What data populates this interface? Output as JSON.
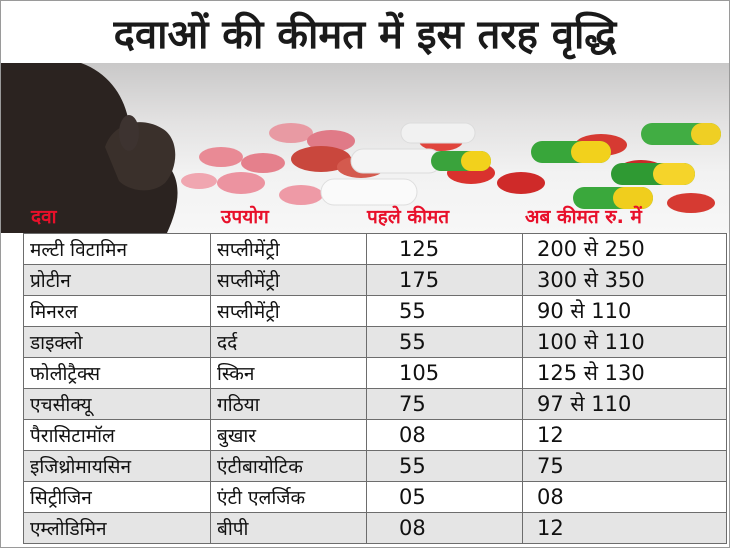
{
  "headline": "दवाओं की कीमत में इस तरह वृद्धि",
  "colors": {
    "header_text": "#e8102a",
    "shaded_row": "#e5e5e5"
  },
  "table": {
    "headers": {
      "drug": "दवा",
      "use": "उपयोग",
      "old_price": "पहले कीमत",
      "new_price": "अब कीमत रु. में"
    },
    "rows": [
      {
        "drug": "मल्टी विटामिन",
        "use": "सप्लीमेंट्री",
        "old_price": "125",
        "new_price": "200 से 250"
      },
      {
        "drug": "प्रोटीन",
        "use": "सप्लीमेंट्री",
        "old_price": "175",
        "new_price": "300 से 350"
      },
      {
        "drug": "मिनरल",
        "use": "सप्लीमेंट्री",
        "old_price": "55",
        "new_price": "90 से 110"
      },
      {
        "drug": "डाइक्लो",
        "use": "दर्द",
        "old_price": "55",
        "new_price": "100 से 110"
      },
      {
        "drug": "फोलीट्रैक्स",
        "use": "स्किन",
        "old_price": "105",
        "new_price": "125 से 130"
      },
      {
        "drug": "एचसीक्यू",
        "use": "गठिया",
        "old_price": "75",
        "new_price": "97 से 110"
      },
      {
        "drug": "पैरासिटामॉल",
        "use": "बुखार",
        "old_price": "08",
        "new_price": "12"
      },
      {
        "drug": "इजिथ्रोमायसिन",
        "use": "एंटीबायोटिक",
        "old_price": "55",
        "new_price": "75"
      },
      {
        "drug": "सिट्रीजिन",
        "use": "एंटी एलर्जिक",
        "old_price": "05",
        "new_price": "08"
      },
      {
        "drug": "एम्लोडिमिन",
        "use": "बीपी",
        "old_price": "08",
        "new_price": "12"
      }
    ]
  }
}
